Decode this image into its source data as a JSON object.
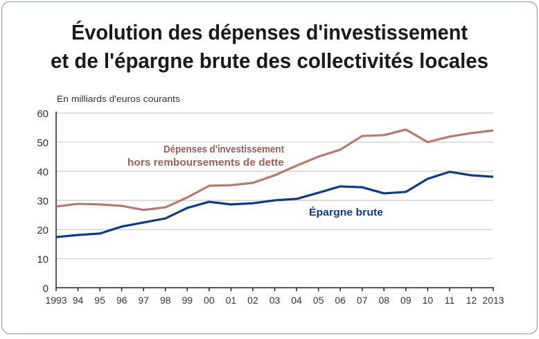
{
  "chart_data": {
    "type": "line",
    "title": [
      "Évolution des dépenses d'investissement",
      "et de l'épargne brute des collectivités locales"
    ],
    "ylabel": "En milliards d'euros courants",
    "xlabel": "",
    "ylim": [
      0,
      60
    ],
    "yticks": [
      0,
      10,
      20,
      30,
      40,
      50,
      60
    ],
    "grid": true,
    "x": [
      1993,
      1994,
      1995,
      1996,
      1997,
      1998,
      1999,
      2000,
      2001,
      2002,
      2003,
      2004,
      2005,
      2006,
      2007,
      2008,
      2009,
      2010,
      2011,
      2012,
      2013
    ],
    "xtick_labels": [
      "1993",
      "94",
      "95",
      "96",
      "97",
      "98",
      "99",
      "00",
      "01",
      "02",
      "03",
      "04",
      "05",
      "06",
      "07",
      "08",
      "09",
      "10",
      "11",
      "12",
      "2013"
    ],
    "series": [
      {
        "name": [
          "Dépenses d'investissement",
          "hors remboursements de dette"
        ],
        "color": "#b87a6e",
        "values": [
          27.9,
          28.8,
          28.6,
          28.1,
          26.7,
          27.6,
          31.0,
          35.0,
          35.2,
          36.0,
          38.6,
          41.9,
          45.0,
          47.4,
          52.1,
          52.4,
          54.3,
          50.0,
          51.9,
          53.1,
          54.0
        ]
      },
      {
        "name": [
          "Épargne brute"
        ],
        "color": "#0d3a8c",
        "values": [
          17.4,
          18.1,
          18.6,
          21.0,
          22.4,
          23.8,
          27.4,
          29.5,
          28.6,
          29.0,
          30.0,
          30.5,
          32.6,
          34.8,
          34.5,
          32.4,
          32.9,
          37.4,
          39.8,
          38.6,
          38.1
        ]
      }
    ]
  }
}
